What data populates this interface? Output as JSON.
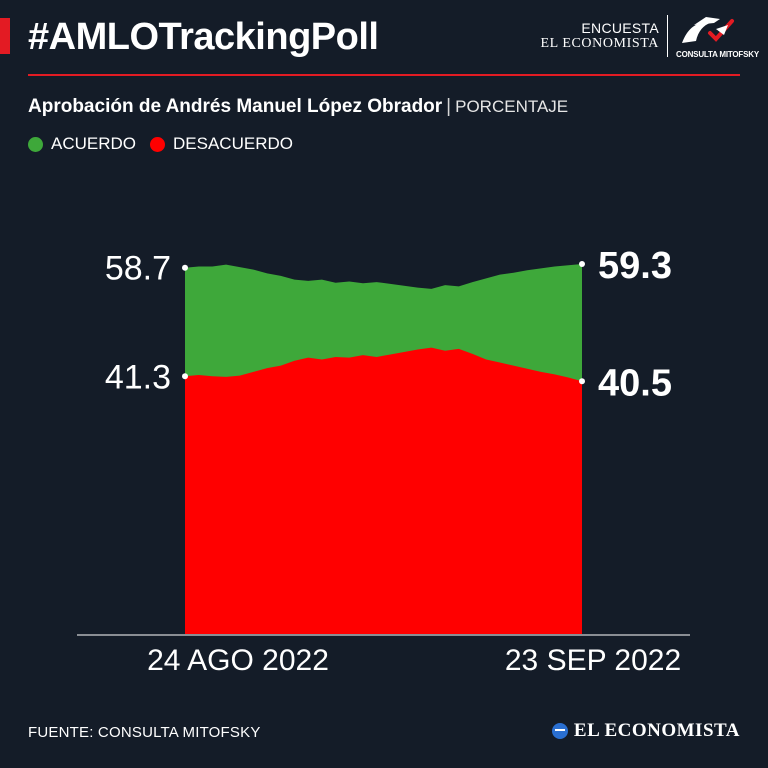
{
  "header": {
    "hashtag": "#AMLOTrackingPoll",
    "brand_line1": "ENCUESTA",
    "brand_line2": "EL ECONOMISTA",
    "partner_logo_text": "CONSULTA MITOFSKY"
  },
  "colors": {
    "background": "#141c28",
    "accent": "#e31b23",
    "acuerdo": "#3ea83a",
    "desacuerdo": "#ff0000",
    "text": "#ffffff"
  },
  "chart_data": {
    "type": "area",
    "title": "Aprobación de Andrés Manuel López Obrador",
    "unit_label": "PORCENTAJE",
    "x": [
      "24 AGO 2022",
      "",
      "",
      "",
      "",
      "",
      "",
      "",
      "",
      "",
      "",
      "",
      "",
      "",
      "",
      "",
      "",
      "",
      "",
      "",
      "",
      "",
      "",
      "",
      "",
      "",
      "",
      "",
      "",
      "23 SEP 2022"
    ],
    "x_tick_labels": [
      "24 AGO 2022",
      "23 SEP 2022"
    ],
    "series": [
      {
        "name": "ACUERDO",
        "color": "#3ea83a",
        "values": [
          58.7,
          58.9,
          58.9,
          59.2,
          58.8,
          58.4,
          57.8,
          57.4,
          56.8,
          56.6,
          56.8,
          56.3,
          56.5,
          56.2,
          56.4,
          56.1,
          55.8,
          55.5,
          55.3,
          55.9,
          55.7,
          56.4,
          57.0,
          57.6,
          57.9,
          58.3,
          58.6,
          58.9,
          59.1,
          59.3
        ],
        "first_label": "58.7",
        "last_label": "59.3"
      },
      {
        "name": "DESACUERDO",
        "color": "#ff0000",
        "values": [
          41.3,
          41.5,
          41.3,
          41.2,
          41.4,
          42.0,
          42.6,
          43.0,
          43.8,
          44.3,
          44.0,
          44.4,
          44.3,
          44.7,
          44.4,
          44.8,
          45.2,
          45.6,
          45.9,
          45.4,
          45.7,
          44.9,
          44.0,
          43.5,
          43.0,
          42.5,
          42.0,
          41.6,
          41.1,
          40.5
        ],
        "first_label": "41.3",
        "last_label": "40.5"
      }
    ],
    "ylim": [
      0,
      62.5
    ],
    "grid": false,
    "legend_position": "top-left"
  },
  "footer": {
    "source": "FUENTE: CONSULTA MITOFSKY",
    "logo_text": "EL ECONOMISTA"
  }
}
